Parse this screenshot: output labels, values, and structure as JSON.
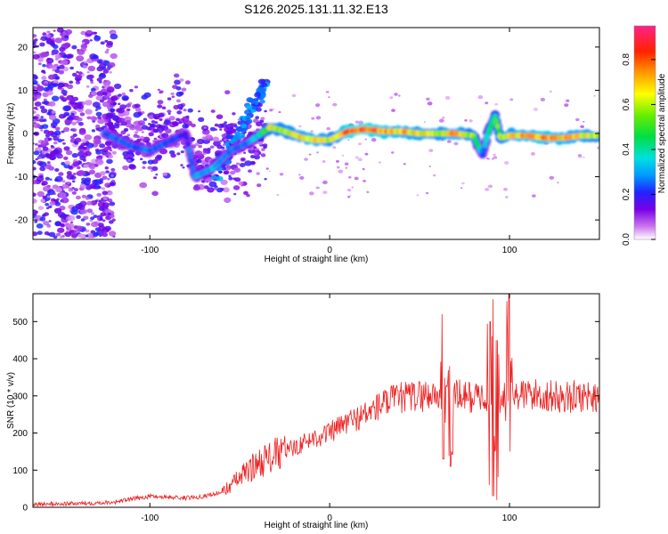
{
  "title": "S126.2025.131.11.32.E13",
  "colors": {
    "snr_line": "#ee2222",
    "axis": "#000000"
  },
  "chart_data": [
    {
      "type": "heatmap",
      "xlabel": "Height of straight line (km)",
      "ylabel": "Frequency (Hz)",
      "xlim": [
        -165,
        150
      ],
      "ylim": [
        -24.5,
        24.5
      ],
      "xticks": [
        -100,
        0,
        100
      ],
      "yticks": [
        -20,
        -10,
        0,
        10,
        20
      ],
      "colorbar": {
        "label": "Normalized spectral amplitude",
        "range": [
          0,
          0.95
        ],
        "ticks": [
          0.0,
          0.2,
          0.4,
          0.6,
          0.8
        ],
        "tick_labels": [
          "0.0",
          "0.2",
          "0.4",
          "0.6",
          "0.8"
        ],
        "colormap": "rainbow"
      },
      "ridge_x": [
        -125,
        -110,
        -100,
        -90,
        -80,
        -75,
        -65,
        -55,
        -45,
        -38,
        -33,
        -25,
        -15,
        -8,
        0,
        5,
        10,
        20,
        30,
        40,
        50,
        60,
        70,
        80,
        85,
        88,
        92,
        95,
        100,
        110,
        120,
        130,
        140,
        148
      ],
      "ridge_y": [
        0,
        -3,
        -4,
        -2,
        0,
        -10,
        -8,
        -4,
        -2,
        0,
        1.5,
        0.5,
        -1,
        -1.5,
        -1.5,
        -0.5,
        0.5,
        1,
        0.5,
        0.5,
        0,
        0,
        0,
        -0.5,
        -5,
        0,
        4,
        -1,
        -0.5,
        -0.5,
        -1,
        -1,
        -0.5,
        -0.5
      ],
      "ridge_amplitude": [
        0.25,
        0.25,
        0.25,
        0.25,
        0.2,
        0.3,
        0.3,
        0.25,
        0.25,
        0.4,
        0.6,
        0.6,
        0.65,
        0.7,
        0.6,
        0.6,
        0.8,
        0.8,
        0.75,
        0.7,
        0.65,
        0.6,
        0.7,
        0.55,
        0.25,
        0.4,
        0.45,
        0.55,
        0.65,
        0.7,
        0.75,
        0.7,
        0.65,
        0.6
      ]
    },
    {
      "type": "line",
      "xlabel": "Height of straight line (km)",
      "ylabel": "SNR (10 * v/v)",
      "xlim": [
        -165,
        150
      ],
      "ylim": [
        0,
        575
      ],
      "xticks": [
        -100,
        0,
        100
      ],
      "yticks": [
        0,
        100,
        200,
        300,
        400,
        500
      ],
      "series": [
        {
          "x": [
            -165,
            -140,
            -120,
            -100,
            -80,
            -70,
            -60,
            -50,
            -40,
            -30,
            -20,
            -10,
            0,
            10,
            20,
            30,
            40,
            50,
            60,
            65,
            70,
            75,
            80,
            85,
            90,
            92,
            95,
            100,
            105,
            110,
            120,
            130,
            140,
            150
          ],
          "y": [
            8,
            10,
            14,
            30,
            25,
            30,
            40,
            80,
            120,
            140,
            160,
            185,
            200,
            230,
            250,
            280,
            295,
            300,
            305,
            310,
            300,
            300,
            295,
            300,
            305,
            200,
            280,
            310,
            300,
            305,
            300,
            295,
            300,
            300
          ],
          "spikes": [
            {
              "x": 63,
              "min": 130,
              "max": 520
            },
            {
              "x": 67,
              "min": 110,
              "max": 380
            },
            {
              "x": 89,
              "min": 60,
              "max": 500
            },
            {
              "x": 91,
              "min": 30,
              "max": 560
            },
            {
              "x": 93,
              "min": 20,
              "max": 450
            },
            {
              "x": 99,
              "min": 70,
              "max": 510
            },
            {
              "x": 100,
              "min": 150,
              "max": 575
            }
          ]
        }
      ]
    }
  ]
}
